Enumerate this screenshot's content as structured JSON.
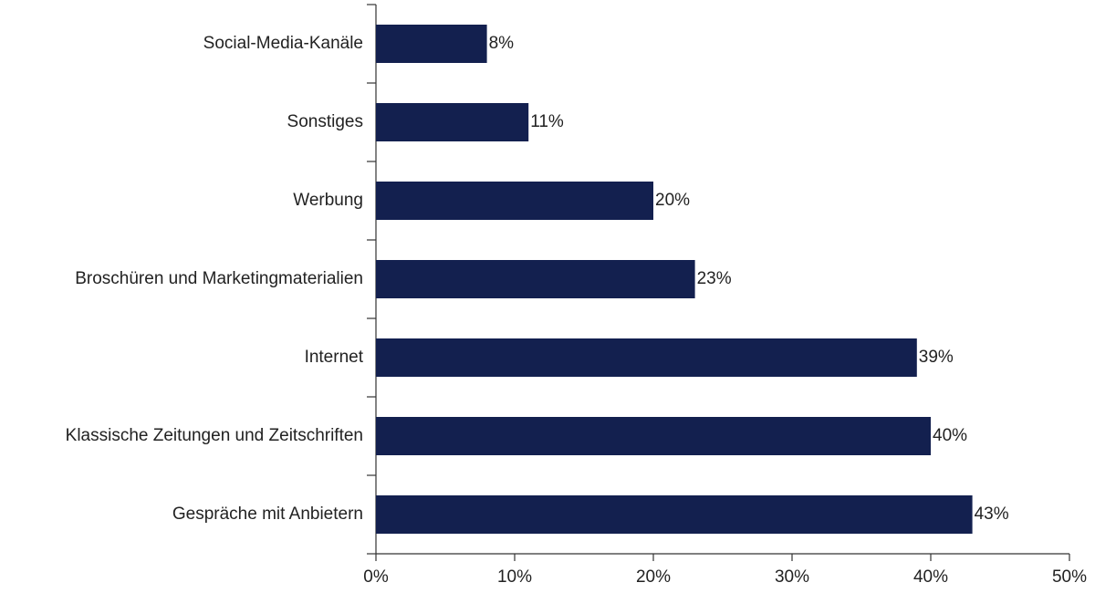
{
  "chart_data": {
    "type": "hbar",
    "categories": [
      "Social-Media-Kanäle",
      "Sonstiges",
      "Werbung",
      "Broschüren und Marketingmaterialien",
      "Internet",
      "Klassische Zeitungen und Zeitschriften",
      "Gespräche mit Anbietern"
    ],
    "values": [
      8,
      11,
      20,
      23,
      39,
      40,
      43
    ],
    "value_labels": [
      "8%",
      "11%",
      "20%",
      "23%",
      "39%",
      "40%",
      "43%"
    ],
    "color": "#13204f",
    "xlim": [
      0,
      50
    ],
    "xticks": [
      {
        "value": 0,
        "label": "0%"
      },
      {
        "value": 10,
        "label": "10%"
      },
      {
        "value": 20,
        "label": "20%"
      },
      {
        "value": 30,
        "label": "30%"
      },
      {
        "value": 40,
        "label": "40%"
      },
      {
        "value": 50,
        "label": "50%"
      }
    ],
    "grid": false
  }
}
